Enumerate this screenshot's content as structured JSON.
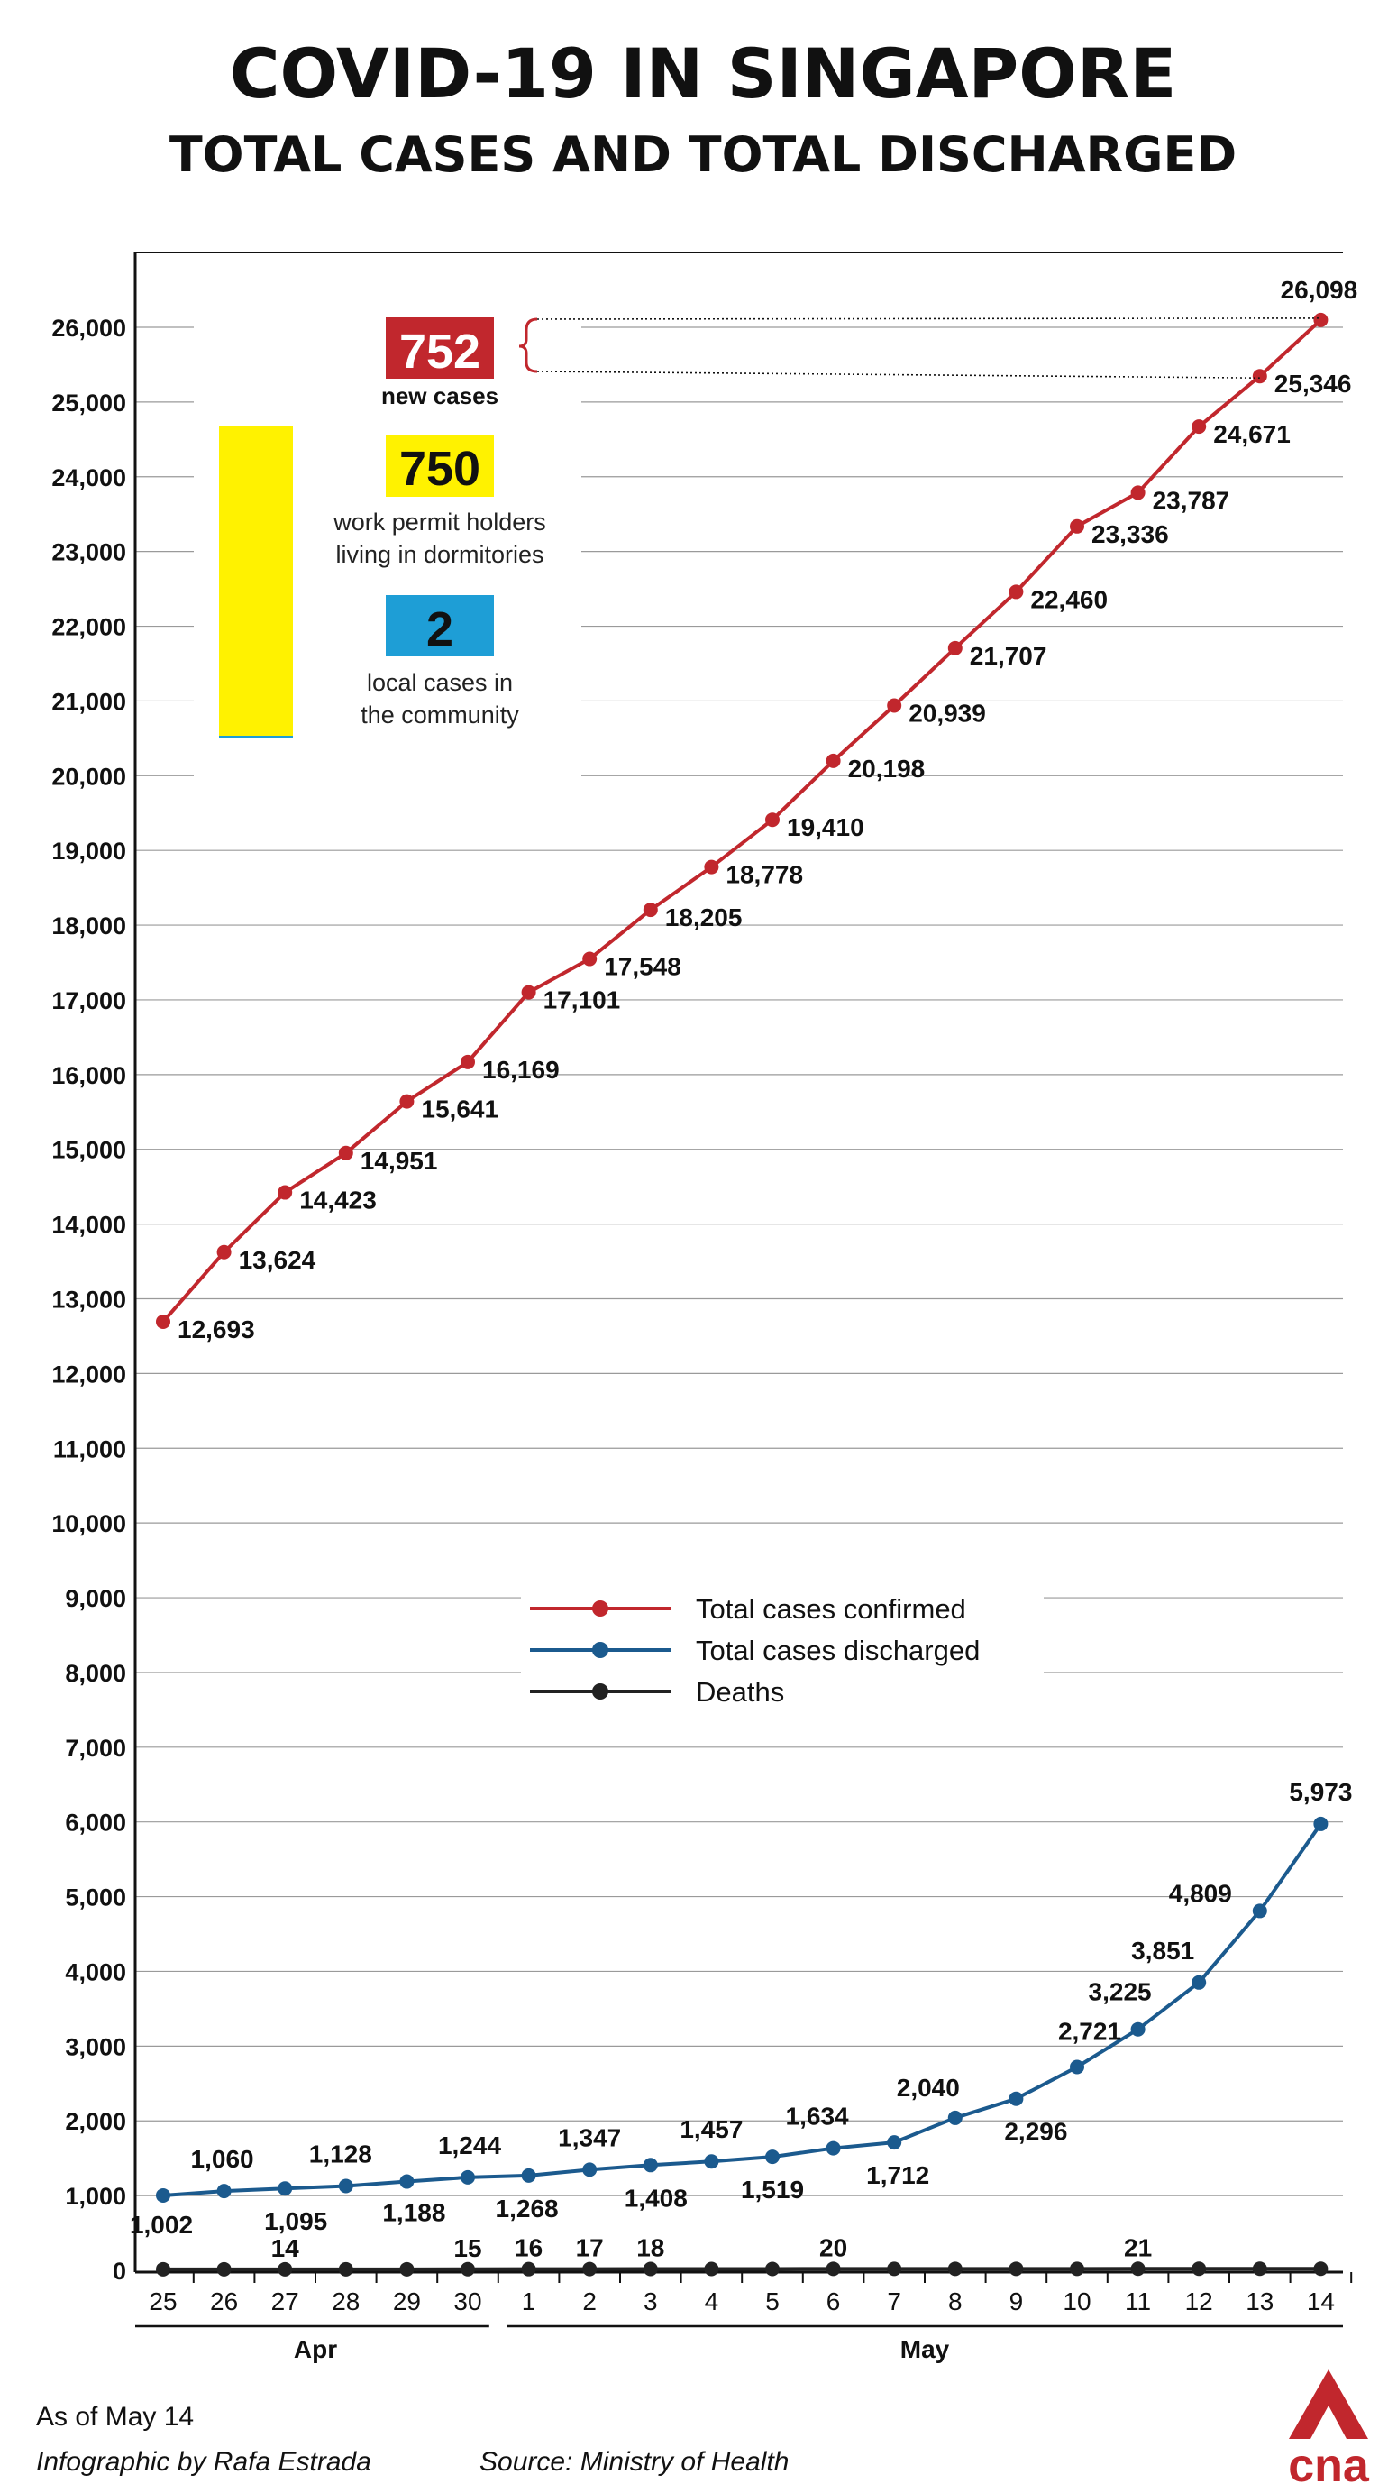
{
  "header": {
    "title": "COVID-19 IN SINGAPORE",
    "subtitle": "TOTAL CASES AND TOTAL DISCHARGED"
  },
  "callout": {
    "new_cases_value": "752",
    "new_cases_label": "new cases",
    "dorm_value": "750",
    "dorm_label_line1": "work permit holders",
    "dorm_label_line2": "living in dormitories",
    "community_value": "2",
    "community_label_line1": "local cases in",
    "community_label_line2": "the community",
    "colors": {
      "new": "#c1272d",
      "dorm": "#fff200",
      "community": "#1e9ed6"
    }
  },
  "legend": {
    "confirmed": "Total cases confirmed",
    "discharged": "Total cases discharged",
    "deaths": "Deaths"
  },
  "footer": {
    "as_of": "As of May 14",
    "credit": "Infographic by Rafa Estrada",
    "source": "Source: Ministry of Health",
    "logo_text": "cna"
  },
  "chart_data": {
    "type": "line",
    "x": [
      "25",
      "26",
      "27",
      "28",
      "29",
      "30",
      "1",
      "2",
      "3",
      "4",
      "5",
      "6",
      "7",
      "8",
      "9",
      "10",
      "11",
      "12",
      "13",
      "14"
    ],
    "month_groups": [
      {
        "label": "Apr",
        "from": 0,
        "to": 5
      },
      {
        "label": "May",
        "from": 6,
        "to": 19
      }
    ],
    "ylim": [
      0,
      26000
    ],
    "yticks": [
      0,
      1000,
      2000,
      3000,
      4000,
      5000,
      6000,
      7000,
      8000,
      9000,
      10000,
      11000,
      12000,
      13000,
      14000,
      15000,
      16000,
      17000,
      18000,
      19000,
      20000,
      21000,
      22000,
      23000,
      24000,
      25000,
      26000
    ],
    "ytick_labels": [
      "0",
      "1,000",
      "2,000",
      "3,000",
      "4,000",
      "5,000",
      "6,000",
      "7,000",
      "8,000",
      "9,000",
      "10,000",
      "11,000",
      "12,000",
      "13,000",
      "14,000",
      "15,000",
      "16,000",
      "17,000",
      "18,000",
      "19,000",
      "20,000",
      "21,000",
      "22,000",
      "23,000",
      "24,000",
      "25,000",
      "26,000"
    ],
    "grid": true,
    "series": [
      {
        "name": "Total cases confirmed",
        "color": "#c1272d",
        "values": [
          12693,
          13624,
          14423,
          14951,
          15641,
          16169,
          17101,
          17548,
          18205,
          18778,
          19410,
          20198,
          20939,
          21707,
          22460,
          23336,
          23787,
          24671,
          25346,
          26098
        ],
        "labels": [
          "12,693",
          "13,624",
          "14,423",
          "14,951",
          "15,641",
          "16,169",
          "17,101",
          "17,548",
          "18,205",
          "18,778",
          "19,410",
          "20,198",
          "20,939",
          "21,707",
          "22,460",
          "23,336",
          "23,787",
          "24,671",
          "25,346",
          "26,098"
        ]
      },
      {
        "name": "Total cases discharged",
        "color": "#1b5a8e",
        "values": [
          1002,
          1060,
          1095,
          1128,
          1188,
          1244,
          1268,
          1347,
          1408,
          1457,
          1519,
          1634,
          1712,
          2040,
          2296,
          2721,
          3225,
          3851,
          4809,
          5973
        ],
        "labels": [
          "1,002",
          "1,060",
          "1,095",
          "1,128",
          "1,188",
          "1,244",
          "1,268",
          "1,347",
          "1,408",
          "1,457",
          "1,519",
          "1,634",
          "1,712",
          "2,040",
          "2,296",
          "2,721",
          "3,225",
          "3,851",
          "4,809",
          "5,973"
        ]
      },
      {
        "name": "Deaths",
        "color": "#222222",
        "values": [
          14,
          14,
          14,
          14,
          14,
          15,
          16,
          17,
          18,
          18,
          18,
          20,
          20,
          20,
          20,
          20,
          21,
          21,
          21,
          21
        ],
        "labels": [
          "",
          "",
          "14",
          "",
          "",
          "15",
          "16",
          "17",
          "18",
          "",
          "",
          "20",
          "",
          "",
          "",
          "",
          "21",
          "",
          "",
          ""
        ]
      }
    ]
  }
}
